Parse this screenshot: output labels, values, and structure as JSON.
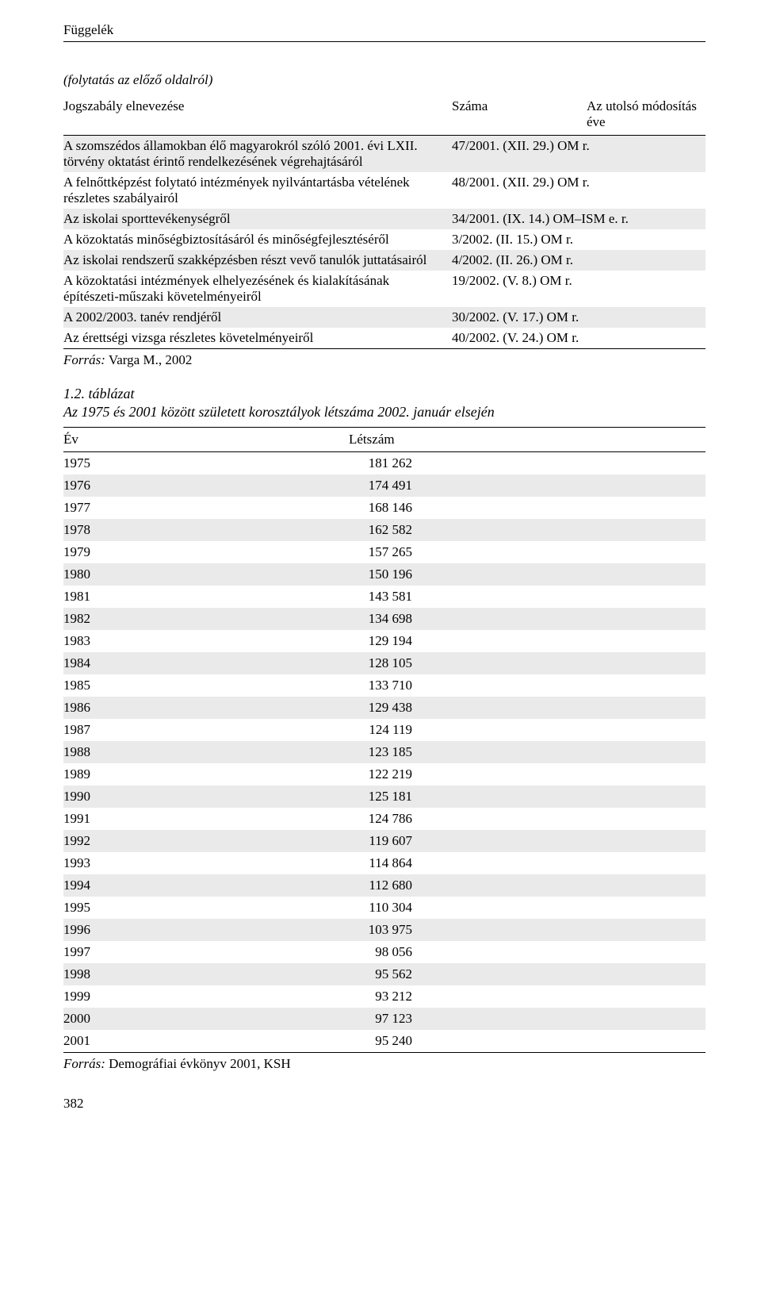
{
  "running_head": "Függelék",
  "continuation_note": "(folytatás az előző oldalról)",
  "table1": {
    "columns": [
      "Jogszabály elnevezése",
      "Száma",
      "Az utolsó módosítás éve"
    ],
    "rows": [
      {
        "shade": true,
        "name": "A szomszédos államokban élő magyarokról szóló 2001. évi LXII. törvény oktatást érintő rendelkezésének végrehajtásáról",
        "num": "47/2001. (XII. 29.) OM r."
      },
      {
        "shade": false,
        "name": "A felnőttképzést folytató intézmények nyilvántartásba vételének részletes szabályairól",
        "num": "48/2001. (XII. 29.) OM r."
      },
      {
        "shade": true,
        "name": "Az iskolai sporttevékenységről",
        "num": "34/2001. (IX. 14.) OM–ISM e. r."
      },
      {
        "shade": false,
        "name": "A közoktatás minőségbiztosításáról és minőségfejlesztéséről",
        "num": "3/2002. (II. 15.) OM r."
      },
      {
        "shade": true,
        "name": "Az iskolai rendszerű szakképzésben részt vevő tanulók juttatásairól",
        "num": "4/2002. (II. 26.) OM r."
      },
      {
        "shade": false,
        "name": "A közoktatási intézmények elhelyezésének és kialakításának építészeti-műszaki követelményeiről",
        "num": "19/2002. (V. 8.) OM r."
      },
      {
        "shade": true,
        "name": "A 2002/2003. tanév rendjéről",
        "num": "30/2002. (V. 17.) OM r."
      },
      {
        "shade": false,
        "name": "Az érettségi vizsga részletes követelményeiről",
        "num": "40/2002. (V. 24.) OM r."
      }
    ],
    "source_label": "Forrás:",
    "source_value": "Varga M., 2002"
  },
  "table2": {
    "label": "1.2. táblázat",
    "title": "Az 1975 és 2001 között született korosztályok létszáma 2002. január elsején",
    "columns": [
      "Év",
      "Létszám"
    ],
    "rows": [
      {
        "shade": false,
        "year": "1975",
        "count": "181 262"
      },
      {
        "shade": true,
        "year": "1976",
        "count": "174 491"
      },
      {
        "shade": false,
        "year": "1977",
        "count": "168 146"
      },
      {
        "shade": true,
        "year": "1978",
        "count": "162 582"
      },
      {
        "shade": false,
        "year": "1979",
        "count": "157 265"
      },
      {
        "shade": true,
        "year": "1980",
        "count": "150 196"
      },
      {
        "shade": false,
        "year": "1981",
        "count": "143 581"
      },
      {
        "shade": true,
        "year": "1982",
        "count": "134 698"
      },
      {
        "shade": false,
        "year": "1983",
        "count": "129 194"
      },
      {
        "shade": true,
        "year": "1984",
        "count": "128 105"
      },
      {
        "shade": false,
        "year": "1985",
        "count": "133 710"
      },
      {
        "shade": true,
        "year": "1986",
        "count": "129 438"
      },
      {
        "shade": false,
        "year": "1987",
        "count": "124 119"
      },
      {
        "shade": true,
        "year": "1988",
        "count": "123 185"
      },
      {
        "shade": false,
        "year": "1989",
        "count": "122 219"
      },
      {
        "shade": true,
        "year": "1990",
        "count": "125 181"
      },
      {
        "shade": false,
        "year": "1991",
        "count": "124 786"
      },
      {
        "shade": true,
        "year": "1992",
        "count": "119 607"
      },
      {
        "shade": false,
        "year": "1993",
        "count": "114 864"
      },
      {
        "shade": true,
        "year": "1994",
        "count": "112 680"
      },
      {
        "shade": false,
        "year": "1995",
        "count": "110 304"
      },
      {
        "shade": true,
        "year": "1996",
        "count": "103 975"
      },
      {
        "shade": false,
        "year": "1997",
        "count": "98 056"
      },
      {
        "shade": true,
        "year": "1998",
        "count": "95 562"
      },
      {
        "shade": false,
        "year": "1999",
        "count": "93 212"
      },
      {
        "shade": true,
        "year": "2000",
        "count": "97 123"
      },
      {
        "shade": false,
        "year": "2001",
        "count": "95 240"
      }
    ],
    "source_label": "Forrás:",
    "source_value": "Demográfiai évkönyv 2001, KSH"
  },
  "page_number": "382",
  "colors": {
    "text": "#000000",
    "background": "#ffffff",
    "shade": "#eaeaea",
    "rule": "#000000"
  },
  "typography": {
    "body_fontsize_pt": 12,
    "title_fontsize_pt": 13,
    "font_family": "serif"
  }
}
